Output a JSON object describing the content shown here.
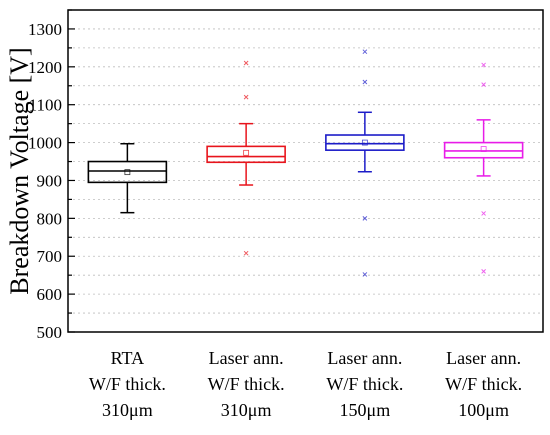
{
  "chart_data": {
    "type": "box",
    "ylabel": "Breakdown Voltage [V]",
    "xlabel": "",
    "ylim": [
      500,
      1350
    ],
    "yticks": [
      500,
      600,
      700,
      800,
      900,
      1000,
      1100,
      1200,
      1300
    ],
    "grid": "dashed horizontal",
    "categories": [
      {
        "lines": [
          "RTA",
          "W/F thick.",
          "310μm"
        ]
      },
      {
        "lines": [
          "Laser ann.",
          "W/F thick.",
          "310μm"
        ]
      },
      {
        "lines": [
          "Laser ann.",
          "W/F thick.",
          "150μm"
        ]
      },
      {
        "lines": [
          "Laser ann.",
          "W/F thick.",
          "100μm"
        ]
      }
    ],
    "series": [
      {
        "color": "#000000",
        "whisker_low": 815,
        "q1": 895,
        "median": 925,
        "q3": 950,
        "whisker_high": 997,
        "mean": 922,
        "outliers": []
      },
      {
        "color": "#e8141c",
        "whisker_low": 888,
        "q1": 948,
        "median": 963,
        "q3": 990,
        "whisker_high": 1050,
        "mean": 973,
        "outliers": [
          1210,
          1120,
          708
        ]
      },
      {
        "color": "#1c1cc8",
        "whisker_low": 923,
        "q1": 980,
        "median": 997,
        "q3": 1020,
        "whisker_high": 1080,
        "mean": 1000,
        "outliers": [
          1240,
          1160,
          800,
          652
        ]
      },
      {
        "color": "#e81ce8",
        "whisker_low": 912,
        "q1": 960,
        "median": 978,
        "q3": 1000,
        "whisker_high": 1060,
        "mean": 983,
        "outliers": [
          1205,
          1153,
          813,
          660
        ]
      }
    ]
  }
}
